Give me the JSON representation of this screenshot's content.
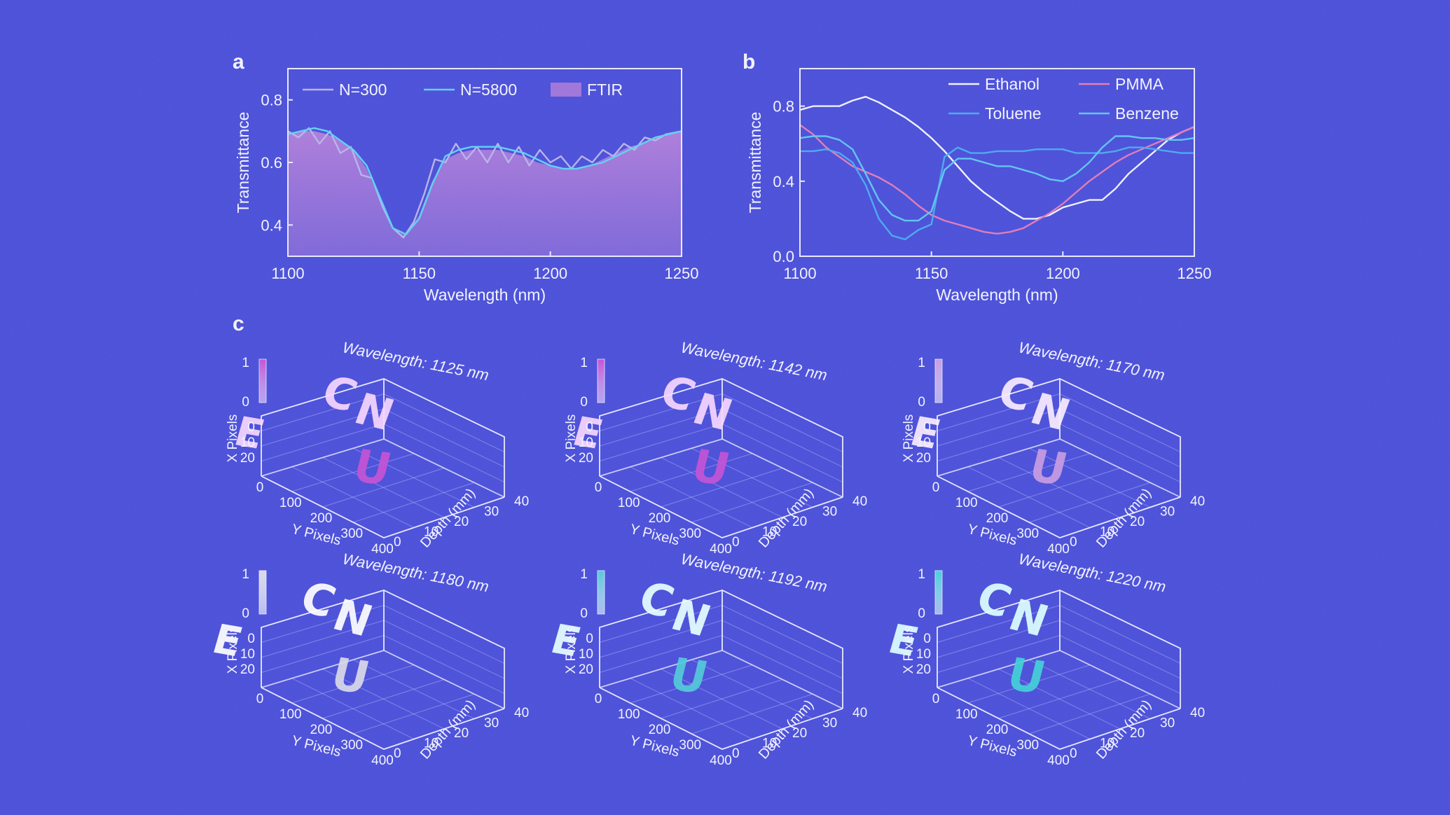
{
  "panels": {
    "a": "a",
    "b": "b",
    "c": "c"
  },
  "chart_data": [
    {
      "id": "a",
      "type": "line",
      "xlabel": "Wavelength (nm)",
      "ylabel": "Transmittance",
      "xlim": [
        1100,
        1250
      ],
      "ylim": [
        0.3,
        0.9
      ],
      "xticks": [
        1100,
        1150,
        1200,
        1250
      ],
      "yticks": [
        0.4,
        0.6,
        0.8
      ],
      "legend_position": "top",
      "series": [
        {
          "name": "N=300",
          "color": "#b7b2ea",
          "x": [
            1100,
            1104,
            1108,
            1112,
            1116,
            1120,
            1124,
            1128,
            1132,
            1136,
            1140,
            1144,
            1148,
            1152,
            1156,
            1160,
            1164,
            1168,
            1172,
            1176,
            1180,
            1184,
            1188,
            1192,
            1196,
            1200,
            1204,
            1208,
            1212,
            1216,
            1220,
            1224,
            1228,
            1232,
            1236,
            1240,
            1244,
            1250
          ],
          "y": [
            0.7,
            0.68,
            0.71,
            0.66,
            0.7,
            0.63,
            0.65,
            0.56,
            0.55,
            0.46,
            0.39,
            0.36,
            0.41,
            0.5,
            0.61,
            0.6,
            0.66,
            0.61,
            0.65,
            0.6,
            0.66,
            0.6,
            0.65,
            0.59,
            0.64,
            0.6,
            0.62,
            0.58,
            0.62,
            0.6,
            0.64,
            0.62,
            0.66,
            0.64,
            0.68,
            0.67,
            0.69,
            0.7
          ]
        },
        {
          "name": "N=5800",
          "color": "#5fd0f2",
          "x": [
            1100,
            1105,
            1110,
            1115,
            1120,
            1125,
            1130,
            1135,
            1140,
            1145,
            1150,
            1155,
            1160,
            1165,
            1170,
            1175,
            1180,
            1185,
            1190,
            1195,
            1200,
            1205,
            1210,
            1215,
            1220,
            1225,
            1230,
            1235,
            1240,
            1245,
            1250
          ],
          "y": [
            0.69,
            0.7,
            0.71,
            0.7,
            0.67,
            0.64,
            0.59,
            0.49,
            0.39,
            0.37,
            0.42,
            0.53,
            0.62,
            0.64,
            0.65,
            0.65,
            0.65,
            0.64,
            0.63,
            0.61,
            0.59,
            0.58,
            0.58,
            0.59,
            0.6,
            0.62,
            0.64,
            0.66,
            0.68,
            0.69,
            0.7
          ]
        },
        {
          "name": "FTIR",
          "color": "#a978d8",
          "style": "area",
          "x": [
            1100,
            1105,
            1110,
            1115,
            1120,
            1125,
            1130,
            1135,
            1140,
            1145,
            1150,
            1155,
            1160,
            1165,
            1170,
            1175,
            1180,
            1185,
            1190,
            1195,
            1200,
            1205,
            1210,
            1215,
            1220,
            1225,
            1230,
            1235,
            1240,
            1245,
            1250
          ],
          "y": [
            0.69,
            0.7,
            0.7,
            0.69,
            0.67,
            0.64,
            0.58,
            0.48,
            0.39,
            0.37,
            0.43,
            0.54,
            0.61,
            0.63,
            0.64,
            0.64,
            0.64,
            0.63,
            0.62,
            0.6,
            0.59,
            0.58,
            0.58,
            0.59,
            0.61,
            0.63,
            0.65,
            0.66,
            0.68,
            0.69,
            0.7
          ]
        }
      ]
    },
    {
      "id": "b",
      "type": "line",
      "xlabel": "Wavelength (nm)",
      "ylabel": "Transmittance",
      "xlim": [
        1100,
        1250
      ],
      "ylim": [
        0.0,
        1.0
      ],
      "xticks": [
        1100,
        1150,
        1200,
        1250
      ],
      "yticks": [
        0.0,
        0.4,
        0.8
      ],
      "legend_position": "top-right",
      "series": [
        {
          "name": "Ethanol",
          "color": "#f0f0ff",
          "x": [
            1100,
            1105,
            1110,
            1115,
            1120,
            1125,
            1130,
            1135,
            1140,
            1145,
            1150,
            1155,
            1160,
            1165,
            1170,
            1175,
            1180,
            1185,
            1190,
            1195,
            1200,
            1205,
            1210,
            1215,
            1220,
            1225,
            1230,
            1235,
            1240,
            1245,
            1250
          ],
          "y": [
            0.78,
            0.8,
            0.8,
            0.8,
            0.83,
            0.85,
            0.82,
            0.78,
            0.74,
            0.69,
            0.63,
            0.56,
            0.48,
            0.4,
            0.34,
            0.29,
            0.24,
            0.2,
            0.2,
            0.22,
            0.26,
            0.28,
            0.3,
            0.3,
            0.36,
            0.44,
            0.5,
            0.56,
            0.62,
            0.66,
            0.69
          ]
        },
        {
          "name": "PMMA",
          "color": "#e07ab6",
          "x": [
            1100,
            1105,
            1110,
            1115,
            1120,
            1125,
            1130,
            1135,
            1140,
            1145,
            1150,
            1155,
            1160,
            1165,
            1170,
            1175,
            1180,
            1185,
            1190,
            1195,
            1200,
            1205,
            1210,
            1215,
            1220,
            1225,
            1230,
            1235,
            1240,
            1245,
            1250
          ],
          "y": [
            0.7,
            0.65,
            0.58,
            0.53,
            0.48,
            0.45,
            0.42,
            0.38,
            0.33,
            0.27,
            0.22,
            0.19,
            0.17,
            0.15,
            0.13,
            0.12,
            0.13,
            0.15,
            0.19,
            0.23,
            0.28,
            0.34,
            0.4,
            0.45,
            0.5,
            0.54,
            0.57,
            0.6,
            0.63,
            0.66,
            0.69
          ]
        },
        {
          "name": "Toluene",
          "color": "#4aa8ee",
          "x": [
            1100,
            1105,
            1110,
            1115,
            1120,
            1125,
            1130,
            1135,
            1140,
            1145,
            1150,
            1155,
            1160,
            1165,
            1170,
            1175,
            1180,
            1185,
            1190,
            1195,
            1200,
            1205,
            1210,
            1215,
            1220,
            1225,
            1230,
            1235,
            1240,
            1245,
            1250
          ],
          "y": [
            0.56,
            0.56,
            0.57,
            0.55,
            0.5,
            0.38,
            0.2,
            0.11,
            0.09,
            0.14,
            0.17,
            0.53,
            0.58,
            0.55,
            0.55,
            0.56,
            0.56,
            0.56,
            0.57,
            0.57,
            0.57,
            0.55,
            0.55,
            0.55,
            0.56,
            0.58,
            0.58,
            0.57,
            0.56,
            0.55,
            0.55
          ]
        },
        {
          "name": "Benzene",
          "color": "#5fc4f0",
          "x": [
            1100,
            1105,
            1110,
            1115,
            1120,
            1125,
            1130,
            1135,
            1140,
            1145,
            1150,
            1155,
            1160,
            1165,
            1170,
            1175,
            1180,
            1185,
            1190,
            1195,
            1200,
            1205,
            1210,
            1215,
            1220,
            1225,
            1230,
            1235,
            1240,
            1245,
            1250
          ],
          "y": [
            0.63,
            0.64,
            0.64,
            0.62,
            0.57,
            0.44,
            0.3,
            0.22,
            0.19,
            0.19,
            0.24,
            0.46,
            0.52,
            0.52,
            0.5,
            0.48,
            0.48,
            0.46,
            0.44,
            0.41,
            0.4,
            0.44,
            0.5,
            0.58,
            0.64,
            0.64,
            0.63,
            0.63,
            0.62,
            0.62,
            0.63
          ]
        }
      ]
    },
    {
      "id": "c",
      "type": "scatter",
      "xlabel": "X Pixels",
      "ylabel": "Y Pixels",
      "zlabel": "Depth (mm)",
      "xticks": [
        "0",
        "10",
        "20"
      ],
      "yticks": [
        "0",
        "100",
        "200",
        "300",
        "400"
      ],
      "zticks": [
        "0",
        "10",
        "20",
        "30",
        "40"
      ],
      "colorbar_ticks": [
        "1",
        "0"
      ],
      "letters": [
        "E",
        "C",
        "N",
        "U"
      ],
      "plots": [
        {
          "title": "Wavelength: 1125 nm",
          "colormap": [
            "#f6d6ff",
            "#c24fd4"
          ]
        },
        {
          "title": "Wavelength: 1142 nm",
          "colormap": [
            "#f6d6ff",
            "#c24fd4"
          ]
        },
        {
          "title": "Wavelength: 1170 nm",
          "colormap": [
            "#f8ecff",
            "#c79ae0"
          ]
        },
        {
          "title": "Wavelength: 1180 nm",
          "colormap": [
            "#ffffff",
            "#d8d8e8"
          ]
        },
        {
          "title": "Wavelength: 1192 nm",
          "colormap": [
            "#e6ffff",
            "#4fc9d8"
          ]
        },
        {
          "title": "Wavelength: 1220 nm",
          "colormap": [
            "#dcffff",
            "#3ed0d6"
          ]
        }
      ]
    }
  ]
}
